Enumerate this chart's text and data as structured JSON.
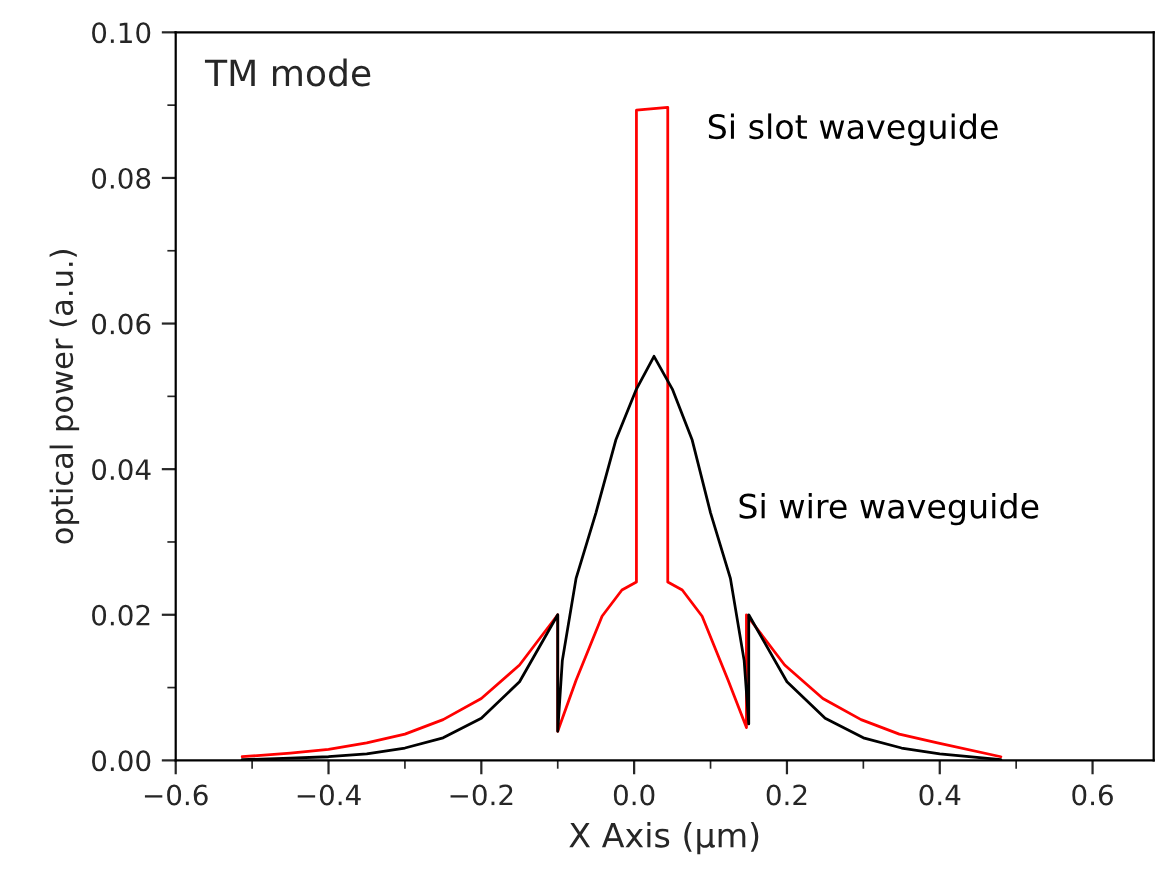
{
  "chart_data": {
    "type": "line",
    "xlabel": "X Axis (μm)",
    "ylabel": "optical power (a.u.)",
    "annotations": [
      "TM mode"
    ],
    "series": [
      {
        "name": "Si slot waveguide",
        "color": "#ff0000",
        "x": [
          -0.513,
          -0.45,
          -0.4,
          -0.35,
          -0.3,
          -0.25,
          -0.2,
          -0.15,
          -0.1,
          -0.1,
          -0.076,
          -0.042,
          -0.016,
          0.003,
          0.003,
          0.044,
          0.044,
          0.063,
          0.089,
          0.123,
          0.147,
          0.147,
          0.197,
          0.247,
          0.297,
          0.347,
          0.397,
          0.48
        ],
        "values": [
          0.0005,
          0.001,
          0.0015,
          0.0024,
          0.0036,
          0.0056,
          0.0085,
          0.0131,
          0.02,
          0.004,
          0.011,
          0.0198,
          0.0234,
          0.0245,
          0.0893,
          0.0897,
          0.0245,
          0.0234,
          0.0198,
          0.011,
          0.0045,
          0.02,
          0.0131,
          0.0085,
          0.0056,
          0.0036,
          0.0024,
          0.0005
        ]
      },
      {
        "name": "Si wire waveguide",
        "color": "#000000",
        "x": [
          -0.513,
          -0.45,
          -0.4,
          -0.35,
          -0.3,
          -0.25,
          -0.2,
          -0.15,
          -0.1,
          -0.1,
          -0.094,
          -0.076,
          -0.05,
          -0.024,
          0.003,
          0.026,
          0.05,
          0.076,
          0.1,
          0.126,
          0.144,
          0.15,
          0.15,
          0.2,
          0.25,
          0.3,
          0.35,
          0.4,
          0.48
        ],
        "values": [
          0.0001,
          0.0003,
          0.0005,
          0.0009,
          0.0017,
          0.0031,
          0.0058,
          0.0108,
          0.02,
          0.004,
          0.0137,
          0.025,
          0.034,
          0.044,
          0.051,
          0.0555,
          0.051,
          0.044,
          0.034,
          0.025,
          0.0137,
          0.005,
          0.02,
          0.0108,
          0.0058,
          0.0031,
          0.0017,
          0.0009,
          0.0001
        ]
      }
    ],
    "xlim": [
      -0.6,
      0.68
    ],
    "ylim": [
      0,
      0.1
    ],
    "xticks": [
      {
        "value": -0.6,
        "label": "−0.6"
      },
      {
        "value": -0.5,
        "label": null
      },
      {
        "value": -0.4,
        "label": "−0.4"
      },
      {
        "value": -0.3,
        "label": null
      },
      {
        "value": -0.2,
        "label": "−0.2"
      },
      {
        "value": -0.1,
        "label": null
      },
      {
        "value": 0.0,
        "label": "0.0"
      },
      {
        "value": 0.1,
        "label": null
      },
      {
        "value": 0.2,
        "label": "0.2"
      },
      {
        "value": 0.3,
        "label": null
      },
      {
        "value": 0.4,
        "label": "0.4"
      },
      {
        "value": 0.5,
        "label": null
      },
      {
        "value": 0.6,
        "label": "0.6"
      }
    ],
    "yticks": [
      {
        "value": 0.0,
        "label": "0.00"
      },
      {
        "value": 0.01,
        "label": null
      },
      {
        "value": 0.02,
        "label": "0.02"
      },
      {
        "value": 0.03,
        "label": null
      },
      {
        "value": 0.04,
        "label": "0.04"
      },
      {
        "value": 0.05,
        "label": null
      },
      {
        "value": 0.06,
        "label": "0.06"
      },
      {
        "value": 0.07,
        "label": null
      },
      {
        "value": 0.08,
        "label": "0.08"
      },
      {
        "value": 0.09,
        "label": null
      },
      {
        "value": 0.1,
        "label": "0.10"
      }
    ],
    "grid": false,
    "legend": false,
    "marker": "none",
    "line_style": "solid"
  }
}
